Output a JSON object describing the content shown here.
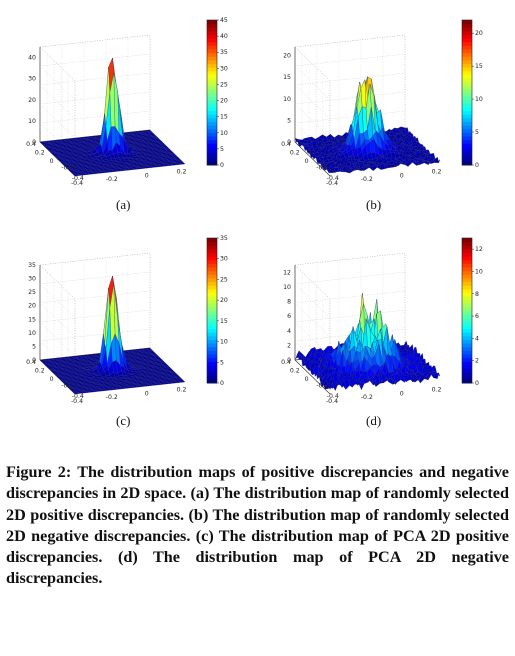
{
  "panels": [
    {
      "id": "a",
      "label": "(a)",
      "zticks": [
        "0",
        "10",
        "20",
        "30",
        "40"
      ],
      "colorbar_ticks": [
        "0",
        "5",
        "10",
        "15",
        "20",
        "25",
        "30",
        "35",
        "40",
        "45"
      ],
      "colorbar_max": 45,
      "z_max": 45,
      "peak_kind": "sharp",
      "x_ticks": [
        "-0.4",
        "-0.2",
        "0",
        "0.2"
      ],
      "y_ticks": [
        "0.4",
        "0.2",
        "0",
        "-0.2",
        "-0.4"
      ]
    },
    {
      "id": "b",
      "label": "(b)",
      "zticks": [
        "0",
        "5",
        "10",
        "15",
        "20"
      ],
      "colorbar_ticks": [
        "0",
        "5",
        "10",
        "15",
        "20"
      ],
      "colorbar_max": 22,
      "z_max": 22,
      "peak_kind": "broad",
      "x_ticks": [
        "-0.4",
        "-0.2",
        "0",
        "0.2"
      ],
      "y_ticks": [
        "0.4",
        "0.2",
        "0",
        "-0.2",
        "-0.4"
      ]
    },
    {
      "id": "c",
      "label": "(c)",
      "zticks": [
        "0",
        "5",
        "10",
        "15",
        "20",
        "25",
        "30",
        "35"
      ],
      "colorbar_ticks": [
        "0",
        "5",
        "10",
        "15",
        "20",
        "25",
        "30",
        "35"
      ],
      "colorbar_max": 35,
      "z_max": 35,
      "peak_kind": "sharp",
      "x_ticks": [
        "-0.4",
        "-0.2",
        "0",
        "0.2"
      ],
      "y_ticks": [
        "0.4",
        "0.2",
        "0",
        "-0.2",
        "-0.4"
      ]
    },
    {
      "id": "d",
      "label": "(d)",
      "zticks": [
        "0",
        "2",
        "4",
        "6",
        "8",
        "10",
        "12"
      ],
      "colorbar_ticks": [
        "0",
        "2",
        "4",
        "6",
        "8",
        "10",
        "12"
      ],
      "colorbar_max": 13,
      "z_max": 13,
      "peak_kind": "spread",
      "x_ticks": [
        "-0.4",
        "-0.2",
        "0",
        "0.2"
      ],
      "y_ticks": [
        "0.4",
        "0.2",
        "0",
        "-0.2",
        "-0.4"
      ]
    }
  ],
  "caption": "Figure 2: The distribution maps of positive discrepancies and negative discrepancies in 2D space. (a) The distribution map of randomly selected 2D positive discrepancies. (b) The distribution map of randomly selected 2D negative discrepancies. (c) The distribution map of PCA 2D positive discrepancies. (d) The distribution map of PCA 2D negative discrepancies."
}
